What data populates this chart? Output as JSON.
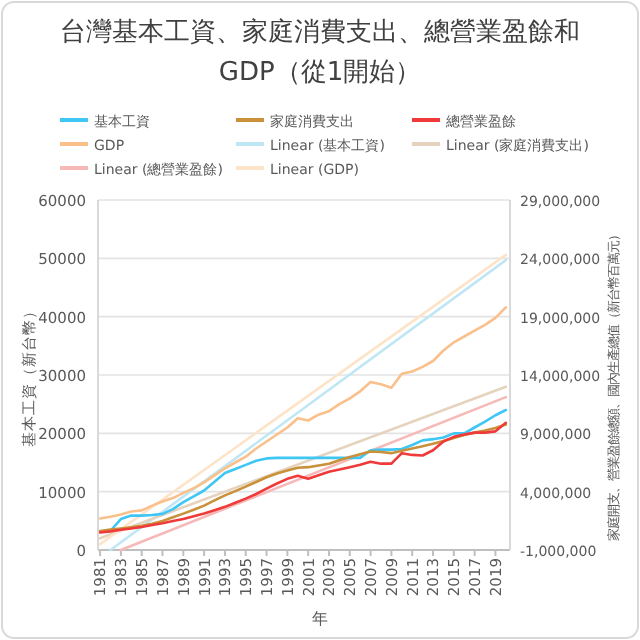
{
  "chart_data": {
    "type": "line",
    "title": "台灣基本工資、家庭消費支出、總營業盈餘和GDP（從1開始）",
    "xlabel": "年",
    "ylabel": "基本工資（新台幣）",
    "y2label": "家庭開支、營業盈餘總額、國內生產總值（新台幣百萬元）",
    "x": [
      1981,
      1982,
      1983,
      1984,
      1985,
      1986,
      1987,
      1988,
      1989,
      1990,
      1991,
      1992,
      1993,
      1994,
      1995,
      1996,
      1997,
      1998,
      1999,
      2000,
      2001,
      2002,
      2003,
      2004,
      2005,
      2006,
      2007,
      2008,
      2009,
      2010,
      2011,
      2012,
      2013,
      2014,
      2015,
      2016,
      2017,
      2018,
      2019,
      2020
    ],
    "xlim": [
      1980.8,
      2020.4
    ],
    "xticks": [
      1981,
      1983,
      1985,
      1987,
      1989,
      1991,
      1993,
      1995,
      1997,
      1999,
      2001,
      2003,
      2005,
      2007,
      2009,
      2011,
      2013,
      2015,
      2017,
      2019
    ],
    "ylim": [
      0,
      60000
    ],
    "yticks": [
      0,
      10000,
      20000,
      30000,
      40000,
      50000,
      60000
    ],
    "y2lim": [
      -1000000,
      29000000
    ],
    "y2ticks": [
      {
        "value": -1000000,
        "label": "-1,000,000"
      },
      {
        "value": 4000000,
        "label": "4,000,000"
      },
      {
        "value": 9000000,
        "label": "9,000,000"
      },
      {
        "value": 14000000,
        "label": "14,000,000"
      },
      {
        "value": 19000000,
        "label": "19,000,000"
      },
      {
        "value": 24000000,
        "label": "24,000,000"
      },
      {
        "value": 29000000,
        "label": "29,000,000"
      }
    ],
    "grid": "y",
    "legend": "top",
    "series": [
      {
        "name": "基本工資",
        "color": "#3ec6f5",
        "values": [
          null,
          3300,
          5300,
          5900,
          5900,
          6000,
          6200,
          7000,
          8200,
          9200,
          10200,
          11700,
          13200,
          13900,
          14600,
          15300,
          15700,
          15800,
          15800,
          15800,
          15800,
          15800,
          15800,
          15800,
          15800,
          15800,
          17100,
          17200,
          17200,
          17300,
          18000,
          18800,
          19000,
          19300,
          20000,
          20000,
          21000,
          22000,
          23100,
          24000
        ]
      },
      {
        "name": "家庭消費支出",
        "color": "#c8913a",
        "axis": "y2",
        "values": [
          620000,
          750000,
          850000,
          950000,
          1080000,
          1250000,
          1490000,
          1800000,
          2120000,
          2450000,
          2800000,
          3250000,
          3680000,
          4050000,
          4430000,
          4830000,
          5240000,
          5550000,
          5820000,
          6050000,
          6100000,
          6250000,
          6400000,
          6700000,
          6980000,
          7200000,
          7440000,
          7400000,
          7300000,
          7500000,
          7700000,
          7900000,
          8100000,
          8350000,
          8600000,
          8850000,
          9060000,
          9250000,
          9460000,
          9750000
        ]
      },
      {
        "name": "總營業盈餘",
        "color": "#f03a3a",
        "axis": "y2",
        "values": [
          500000,
          600000,
          730000,
          850000,
          970000,
          1150000,
          1300000,
          1480000,
          1660000,
          1900000,
          2120000,
          2400000,
          2700000,
          3050000,
          3400000,
          3800000,
          4260000,
          4700000,
          5100000,
          5360000,
          5100000,
          5400000,
          5700000,
          5900000,
          6100000,
          6300000,
          6570000,
          6400000,
          6400000,
          7300000,
          7150000,
          7100000,
          7550000,
          8300000,
          8700000,
          8900000,
          9060000,
          9060000,
          9170000,
          9900000
        ]
      },
      {
        "name": "GDP",
        "color": "#f9c08c",
        "axis": "y2",
        "values": [
          1700000,
          1850000,
          2050000,
          2300000,
          2400000,
          2800000,
          3150000,
          3450000,
          3900000,
          4300000,
          4800000,
          5400000,
          6000000,
          6500000,
          7000000,
          7700000,
          8300000,
          8900000,
          9500000,
          10300000,
          10100000,
          10600000,
          10900000,
          11500000,
          12000000,
          12600000,
          13400000,
          13200000,
          12900000,
          14100000,
          14300000,
          14700000,
          15200000,
          16100000,
          16800000,
          17300000,
          17800000,
          18300000,
          18900000,
          19800000
        ]
      },
      {
        "name": "Linear (基本工資)",
        "color": "#bfe6f5",
        "x": [
          1982,
          2020
        ],
        "values": [
          0,
          49700
        ]
      },
      {
        "name": "Linear (家庭消費支出)",
        "color": "#e6d3bd",
        "axis": "y2",
        "x": [
          1981,
          2020
        ],
        "values": [
          0,
          13000000
        ]
      },
      {
        "name": "Linear (總營業盈餘)",
        "color": "#f7b8b8",
        "axis": "y2",
        "x": [
          1983,
          2020
        ],
        "values": [
          -1000000,
          12100000
        ]
      },
      {
        "name": "Linear (GDP)",
        "color": "#fde3c8",
        "axis": "y2",
        "x": [
          1981,
          2020
        ],
        "values": [
          -500000,
          24300000
        ]
      }
    ]
  }
}
